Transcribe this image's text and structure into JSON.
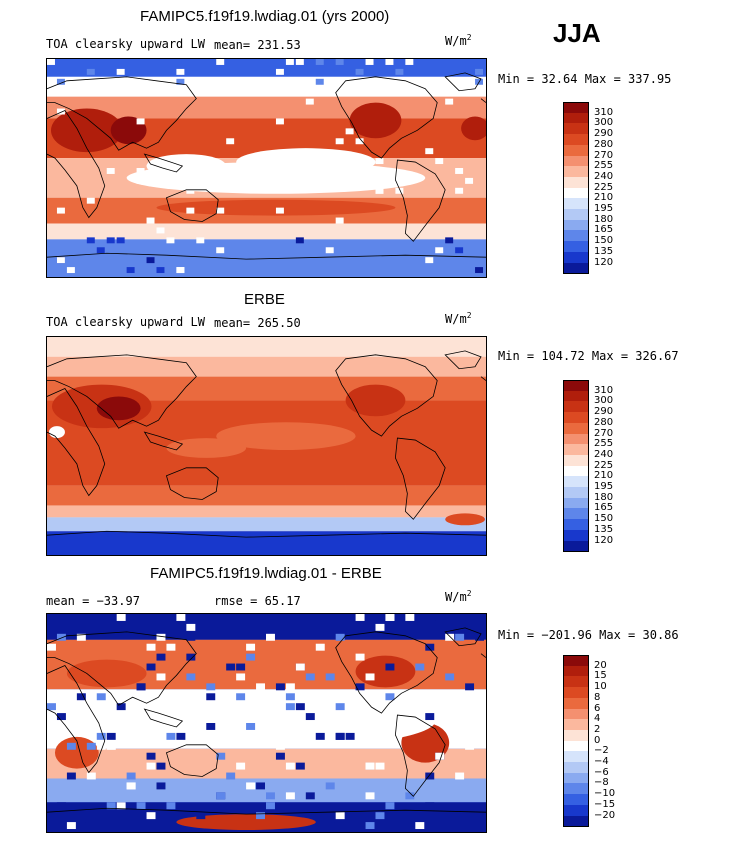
{
  "season": "JJA",
  "panels": [
    {
      "title": "FAMIPC5.f19f19.lwdiag.01 (yrs 2000)",
      "variable": "TOA clearsky upward LW",
      "stat_text": "mean= 231.53",
      "units_base": "W/m",
      "units_exp": "2",
      "minmax": "Min =  32.64 Max = 337.95",
      "colorbar_labels": [
        "310",
        "300",
        "290",
        "280",
        "270",
        "255",
        "240",
        "225",
        "210",
        "195",
        "180",
        "165",
        "150",
        "135",
        "120"
      ]
    },
    {
      "title": "ERBE",
      "variable": "TOA clearsky upward LW",
      "stat_text": "mean= 265.50",
      "units_base": "W/m",
      "units_exp": "2",
      "minmax": "Min = 104.72 Max = 326.67",
      "colorbar_labels": [
        "310",
        "300",
        "290",
        "280",
        "270",
        "255",
        "240",
        "225",
        "210",
        "195",
        "180",
        "165",
        "150",
        "135",
        "120"
      ]
    },
    {
      "title": "FAMIPC5.f19f19.lwdiag.01 - ERBE",
      "mean_text": "mean = −33.97",
      "rmse_text": "rmse =  65.17",
      "units_base": "W/m",
      "units_exp": "2",
      "minmax": "Min = −201.96 Max =  30.86",
      "colorbar_labels": [
        "20",
        "15",
        "10",
        "8",
        "6",
        "4",
        "2",
        "0",
        "−2",
        "−4",
        "−6",
        "−8",
        "−10",
        "−15",
        "−20"
      ]
    }
  ],
  "colors": {
    "scale": [
      "#8b0a0a",
      "#b01e0c",
      "#c83214",
      "#dc4a22",
      "#ea6a3e",
      "#f49070",
      "#fbb89e",
      "#fde3d6",
      "#ffffff",
      "#d6e4fb",
      "#b3c9f5",
      "#8aaaf0",
      "#5e86ea",
      "#3560e2",
      "#1838cc",
      "#0a1a9a"
    ],
    "land": "#000000",
    "missing": "#ffffff"
  }
}
